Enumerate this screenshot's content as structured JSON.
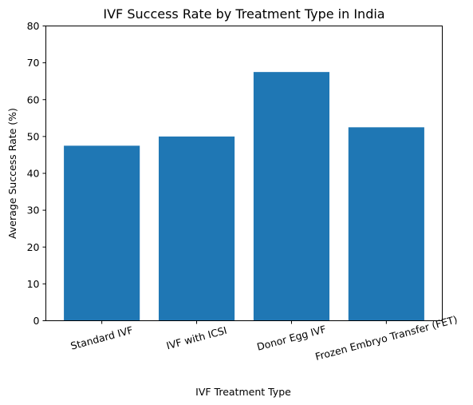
{
  "chart_data": {
    "type": "bar",
    "title": "IVF Success Rate by Treatment Type in India",
    "xlabel": "IVF Treatment Type",
    "ylabel": "Average Success Rate (%)",
    "categories": [
      "Standard IVF",
      "IVF with ICSI",
      "Donor Egg IVF",
      "Frozen Embryo Transfer (FET)"
    ],
    "values": [
      47.5,
      50,
      67.5,
      52.5
    ],
    "ylim": [
      0,
      80
    ],
    "yticks": [
      0,
      10,
      20,
      30,
      40,
      50,
      60,
      70,
      80
    ],
    "bar_color": "#1f77b4",
    "grid": false,
    "legend": "none",
    "xtick_rotation_deg": 15
  }
}
